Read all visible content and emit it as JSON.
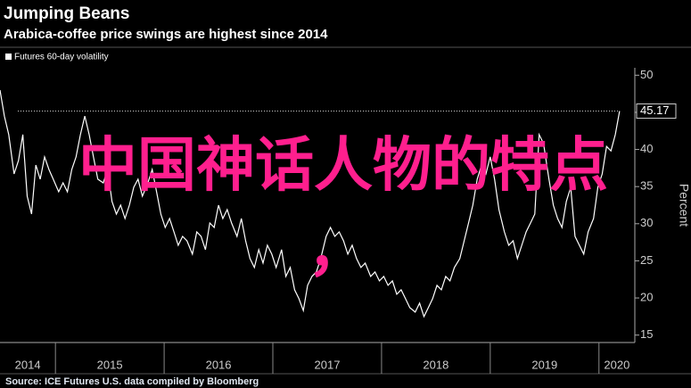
{
  "chart_data": {
    "type": "line",
    "title": "Jumping Beans",
    "subtitle": "Arabica-coffee price swings are highest since 2014",
    "y_label": "Percent",
    "source": "Source: ICE Futures U.S. data compiled by Bloomberg",
    "overlay_text": "中国神话人物的特点",
    "overlay_mark": "，",
    "overlay_color": "#ff1f8e",
    "x": [
      2014.49,
      2014.53,
      2014.57,
      2014.62,
      2014.66,
      2014.7,
      2014.74,
      2014.78,
      2014.82,
      2014.86,
      2014.9,
      2014.94,
      2014.98,
      2015.03,
      2015.07,
      2015.11,
      2015.15,
      2015.19,
      2015.23,
      2015.27,
      2015.31,
      2015.35,
      2015.39,
      2015.44,
      2015.48,
      2015.52,
      2015.56,
      2015.6,
      2015.64,
      2015.68,
      2015.72,
      2015.76,
      2015.8,
      2015.85,
      2015.89,
      2015.93,
      2015.97,
      2016.01,
      2016.05,
      2016.09,
      2016.13,
      2016.17,
      2016.21,
      2016.26,
      2016.3,
      2016.34,
      2016.38,
      2016.42,
      2016.46,
      2016.5,
      2016.54,
      2016.58,
      2016.62,
      2016.67,
      2016.71,
      2016.75,
      2016.79,
      2016.83,
      2016.87,
      2016.91,
      2016.95,
      2016.99,
      2017.03,
      2017.08,
      2017.12,
      2017.16,
      2017.2,
      2017.24,
      2017.28,
      2017.32,
      2017.36,
      2017.4,
      2017.44,
      2017.49,
      2017.53,
      2017.57,
      2017.61,
      2017.65,
      2017.69,
      2017.73,
      2017.77,
      2017.81,
      2017.85,
      2017.9,
      2017.94,
      2017.98,
      2018.02,
      2018.06,
      2018.1,
      2018.14,
      2018.18,
      2018.22,
      2018.26,
      2018.31,
      2018.35,
      2018.39,
      2018.43,
      2018.47,
      2018.51,
      2018.55,
      2018.59,
      2018.63,
      2018.67,
      2018.72,
      2018.76,
      2018.8,
      2018.84,
      2018.88,
      2018.92,
      2018.96,
      2019.0,
      2019.04,
      2019.08,
      2019.13,
      2019.17,
      2019.21,
      2019.25,
      2019.29,
      2019.33,
      2019.37,
      2019.41,
      2019.45,
      2019.49,
      2019.54,
      2019.58,
      2019.62,
      2019.66,
      2019.7,
      2019.74,
      2019.78,
      2019.82,
      2019.86,
      2019.9,
      2019.95,
      2019.99,
      2020.03,
      2020.07,
      2020.11,
      2020.15,
      2020.19
    ],
    "series": [
      {
        "name": "Futures 60-day volatility",
        "color": "#ffffff",
        "values": [
          48,
          44.5,
          42,
          36.7,
          38.5,
          42,
          33.7,
          31.3,
          37.9,
          36,
          39,
          37.3,
          36,
          34.3,
          35.5,
          34.3,
          37.3,
          39,
          42,
          44.5,
          42,
          39,
          36,
          35.5,
          37.3,
          33,
          31.3,
          32.5,
          30.7,
          32.5,
          34.9,
          36,
          33.7,
          35.5,
          37.3,
          34.3,
          31.3,
          29.5,
          30.7,
          28.9,
          27.1,
          28.3,
          27.7,
          25.9,
          28.9,
          28.3,
          26.5,
          30.1,
          29.5,
          32.5,
          30.7,
          31.9,
          30.1,
          28.3,
          30.7,
          27.7,
          25.3,
          24.1,
          26.5,
          24.7,
          27.1,
          25.9,
          24.1,
          26.5,
          22.9,
          24.1,
          21.1,
          19.9,
          18.3,
          21.7,
          22.9,
          23.5,
          25.3,
          28.3,
          29.5,
          28.3,
          28.9,
          27.7,
          25.9,
          27.1,
          25.3,
          24.1,
          24.7,
          22.9,
          23.5,
          22.3,
          22.9,
          21.7,
          22.3,
          20.5,
          21.1,
          19.9,
          18.7,
          18.1,
          19.3,
          17.5,
          18.7,
          19.9,
          21.7,
          21.1,
          22.9,
          22.3,
          24.1,
          25.3,
          27.7,
          30.1,
          32.5,
          36,
          37.9,
          36.7,
          39,
          36,
          31.9,
          28.9,
          27.1,
          27.7,
          25.3,
          27.1,
          28.9,
          30.1,
          31.3,
          42,
          40.8,
          36,
          32.5,
          30.7,
          29.5,
          33,
          34.9,
          28.3,
          27.1,
          25.9,
          28.9,
          30.7,
          34.9,
          36.7,
          40.4,
          39.8,
          42,
          45.17
        ]
      }
    ],
    "xlim": [
      2014.49,
      2020.33
    ],
    "xticks": [
      {
        "value": 2014,
        "label": "2014"
      },
      {
        "value": 2015,
        "label": "2015"
      },
      {
        "value": 2016,
        "label": "2016"
      },
      {
        "value": 2017,
        "label": "2017"
      },
      {
        "value": 2018,
        "label": "2018"
      },
      {
        "value": 2019,
        "label": "2019"
      },
      {
        "value": 2020,
        "label": "2020"
      }
    ],
    "ylim": [
      14,
      51
    ],
    "yticks": [
      15,
      20,
      25,
      30,
      35,
      40,
      45,
      50
    ]
  }
}
